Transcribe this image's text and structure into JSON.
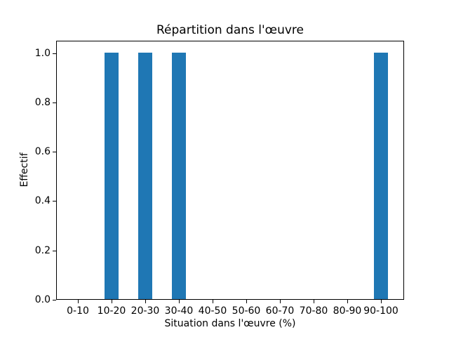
{
  "figure": {
    "background": "#ffffff"
  },
  "chart_data": {
    "type": "bar",
    "title": "Répartition dans l'œuvre",
    "xlabel": "Situation dans l'œuvre (%)",
    "ylabel": "Effectif",
    "categories": [
      "0-10",
      "10-20",
      "20-30",
      "30-40",
      "40-50",
      "50-60",
      "60-70",
      "70-80",
      "80-90",
      "90-100"
    ],
    "values": [
      0,
      1,
      1,
      1,
      0,
      0,
      0,
      0,
      0,
      1
    ],
    "yticks": [
      0.0,
      0.2,
      0.4,
      0.6,
      0.8,
      1.0
    ],
    "ytick_labels": [
      "0.0",
      "0.2",
      "0.4",
      "0.6",
      "0.8",
      "1.0"
    ],
    "ylim": [
      0,
      1.05
    ],
    "bar_color": "#1f77b4",
    "axis_color": "#000000",
    "grid": false,
    "legend": null
  }
}
